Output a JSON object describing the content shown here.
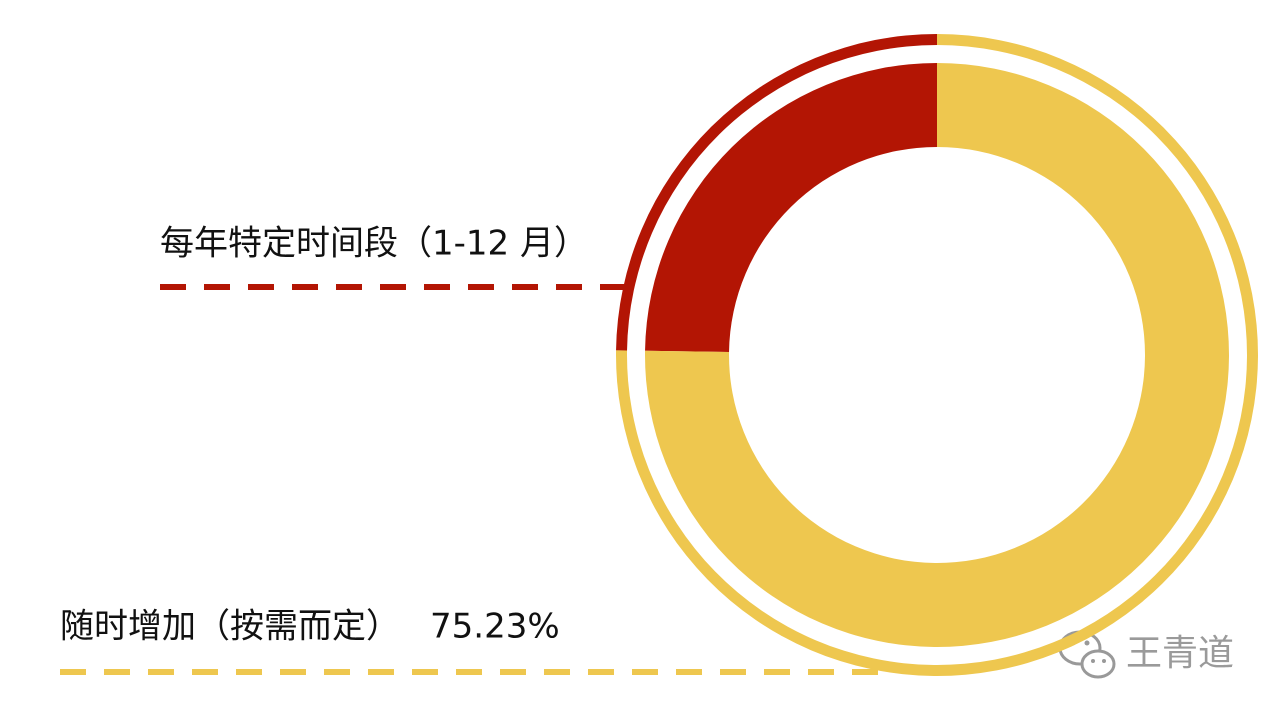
{
  "chart_data": {
    "type": "donut",
    "categories": [
      "每年特定时间段（1-12 月）",
      "随时增加（按需而定）"
    ],
    "values": [
      24.77,
      75.23
    ],
    "value_labels": [
      null,
      "75.23%"
    ],
    "colors": [
      "#b31504",
      "#eec74f"
    ]
  },
  "watermark": "王青道"
}
